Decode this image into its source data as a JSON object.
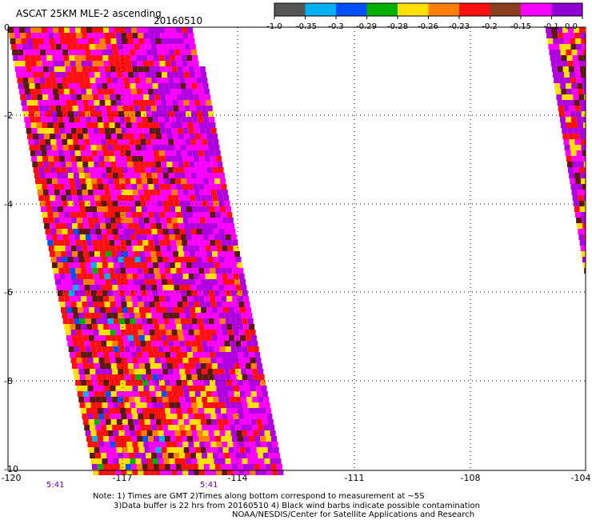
{
  "title": "ASCAT 25KM MLE-2 ascending",
  "date": "20160510",
  "map": {
    "lon_range": [
      -120,
      -104
    ],
    "lat_range": [
      -10,
      0
    ],
    "x_tick_labels": [
      "-120",
      "-117",
      "-114",
      "-111",
      "-108",
      "-104"
    ],
    "y_tick_labels": [
      "0",
      "-2",
      "-4",
      "-6",
      "-8",
      "-10"
    ],
    "grid": "dotted",
    "pass_times": [
      "5:41",
      "5:41"
    ]
  },
  "colorbar": {
    "labels": [
      "-1.0",
      "-0.35",
      "-0.3",
      "-0.29",
      "-0.28",
      "-0.26",
      "-0.23",
      "-0.2",
      "-0.15",
      "-0.1",
      "0.0"
    ],
    "colors": [
      "#555555",
      "#00b0f0",
      "#0050ff",
      "#00b000",
      "#ffe000",
      "#ff8000",
      "#ff1010",
      "#8a4020",
      "#ff00ff",
      "#9000d0"
    ]
  },
  "swath_colors": {
    "dark_gray": "#555555",
    "cyan": "#00b0f0",
    "blue": "#0050ff",
    "green": "#00b000",
    "yellow": "#ffe000",
    "orange": "#ff8000",
    "red": "#ff1010",
    "brown": "#5a1a10",
    "magenta": "#ff00ff",
    "purple": "#b000e0"
  },
  "notes": {
    "line1": "Note: 1) Times are GMT 2)Times along bottom correspond to measurement at ~5S",
    "line2": "3)Data buffer is 22 hrs from 20160510 4) Black wind barbs indicate possible contamination",
    "line3": "NOAA/NESDIS/Center for Satellite Applications and Research"
  }
}
